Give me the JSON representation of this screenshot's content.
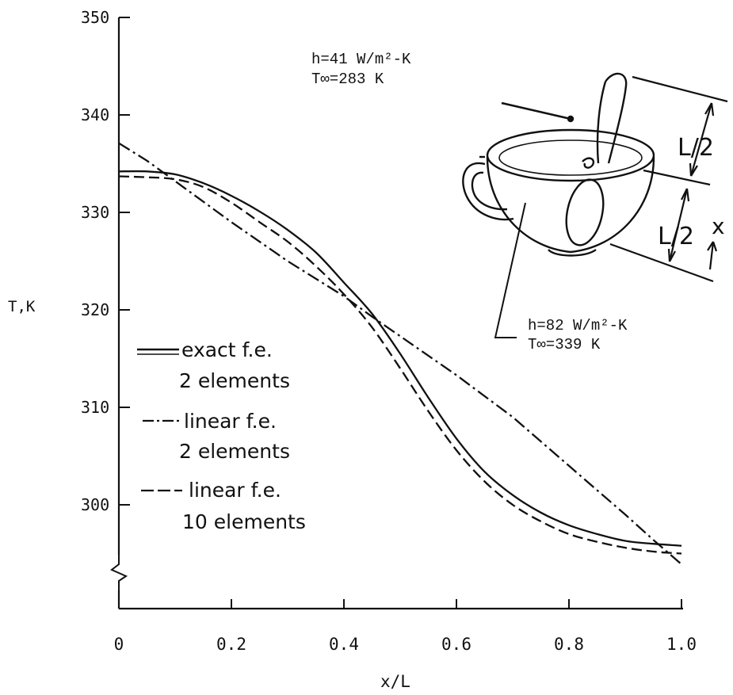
{
  "chart_data": {
    "type": "line",
    "xlabel": "x/L",
    "ylabel": "T,K",
    "xlim": [
      0,
      1.0
    ],
    "ylim": [
      290,
      350
    ],
    "x_ticks": [
      "0",
      "0.2",
      "0.4",
      "0.6",
      "0.8",
      "1.0"
    ],
    "y_ticks": [
      "300",
      "310",
      "320",
      "330",
      "340",
      "350"
    ],
    "axis_break": true,
    "grid": false,
    "legend_placement": "left",
    "legend": [
      {
        "line1": "exact f.e.",
        "line2": "2 elements"
      },
      {
        "line1": "linear f.e.",
        "line2": "2 elements"
      },
      {
        "line1": "linear f.e.",
        "line2": "10 elements"
      }
    ],
    "series": [
      {
        "style": "solid",
        "x": [
          0,
          0.05,
          0.1,
          0.15,
          0.2,
          0.25,
          0.3,
          0.35,
          0.4,
          0.45,
          0.5,
          0.55,
          0.6,
          0.65,
          0.7,
          0.75,
          0.8,
          0.85,
          0.9,
          0.95,
          1.0
        ],
        "y": [
          334.2,
          334.2,
          333.9,
          333.0,
          331.7,
          330.1,
          328.2,
          325.9,
          322.8,
          319.6,
          315.5,
          311.0,
          306.8,
          303.4,
          301.0,
          299.2,
          297.9,
          297.0,
          296.3,
          296.0,
          295.8
        ]
      },
      {
        "style": "dash-dot",
        "x": [
          0,
          0.05,
          0.1,
          0.2,
          0.3,
          0.4,
          0.45,
          0.5,
          0.6,
          0.7,
          0.8,
          0.9,
          0.95,
          1.0
        ],
        "y": [
          337.1,
          335.3,
          333.2,
          329.0,
          325.0,
          321.4,
          319.3,
          317.3,
          313.3,
          309.0,
          304.0,
          299.0,
          296.4,
          293.9
        ]
      },
      {
        "style": "dashed",
        "x": [
          0,
          0.05,
          0.1,
          0.15,
          0.2,
          0.25,
          0.3,
          0.35,
          0.4,
          0.45,
          0.5,
          0.55,
          0.6,
          0.65,
          0.7,
          0.75,
          0.8,
          0.85,
          0.9,
          0.95,
          1.0
        ],
        "y": [
          333.7,
          333.6,
          333.4,
          332.6,
          331.0,
          329.0,
          327.0,
          324.5,
          321.6,
          318.2,
          314.0,
          309.6,
          305.6,
          302.4,
          300.0,
          298.3,
          297.0,
          296.2,
          295.6,
          295.2,
          295.0
        ]
      }
    ],
    "annotations": {
      "top": {
        "line1": "h=41 W/m²-K",
        "line2": "T∞=283 K"
      },
      "bottom": {
        "line1": "h=82 W/m²-K",
        "line2": "T∞=339 K"
      },
      "dim1": "L/2",
      "dim2": "L/2",
      "coord": "x"
    }
  },
  "colors": {
    "ink": "#111111",
    "background": "#ffffff"
  }
}
